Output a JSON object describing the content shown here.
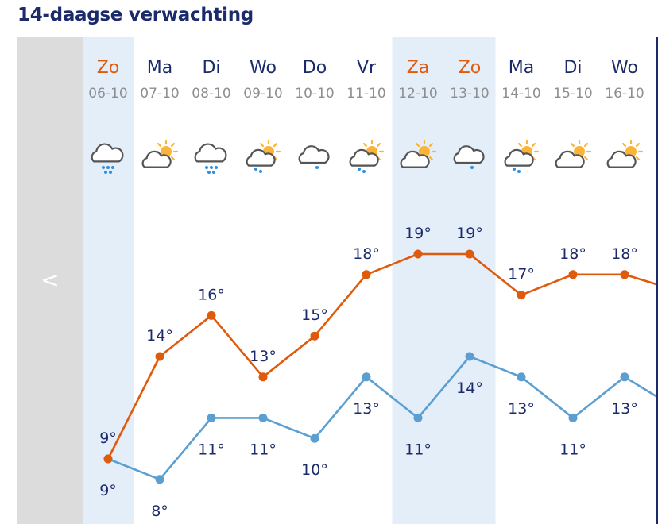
{
  "title": "14-daagse verwachting",
  "nav": {
    "prev_label": "<"
  },
  "colors": {
    "max_line": "#e05a0c",
    "min_line": "#5b9fd1",
    "weekend_text": "#e05a0c",
    "weekday_text": "#1b2a6b",
    "date_text": "#8e8e8e",
    "highlight_bg": "#e3eef9",
    "prev_strip": "#dcdcdc",
    "title": "#1b2a6b"
  },
  "chart_data": {
    "type": "line",
    "unit": "°",
    "ylim": [
      6,
      21
    ],
    "x": [
      "06-10",
      "07-10",
      "08-10",
      "09-10",
      "10-10",
      "11-10",
      "12-10",
      "13-10",
      "14-10",
      "15-10",
      "16-10"
    ],
    "day_names": [
      "Zo",
      "Ma",
      "Di",
      "Wo",
      "Do",
      "Vr",
      "Za",
      "Zo",
      "Ma",
      "Di",
      "Wo"
    ],
    "weekend": [
      true,
      false,
      false,
      false,
      false,
      false,
      true,
      true,
      false,
      false,
      false
    ],
    "highlighted": [
      true,
      false,
      false,
      false,
      false,
      false,
      true,
      true,
      false,
      false,
      false
    ],
    "icons": [
      "cloud-heavy-rain-icon",
      "partly-sunny-cloud-icon",
      "cloud-heavy-rain-icon",
      "sun-cloud-drizzle-icon",
      "cloud-drizzle-icon",
      "sun-cloud-drizzle-icon",
      "partly-sunny-cloud-icon",
      "cloud-drizzle-icon",
      "sun-cloud-drizzle-icon",
      "partly-sunny-cloud-icon",
      "partly-sunny-cloud-icon"
    ],
    "series": [
      {
        "name": "max",
        "values": [
          9,
          14,
          16,
          13,
          15,
          18,
          19,
          19,
          17,
          18,
          18
        ]
      },
      {
        "name": "min",
        "values": [
          9,
          8,
          11,
          11,
          10,
          13,
          11,
          14,
          13,
          11,
          13
        ]
      }
    ],
    "trailing": {
      "max": 17.5,
      "min": 12
    }
  }
}
